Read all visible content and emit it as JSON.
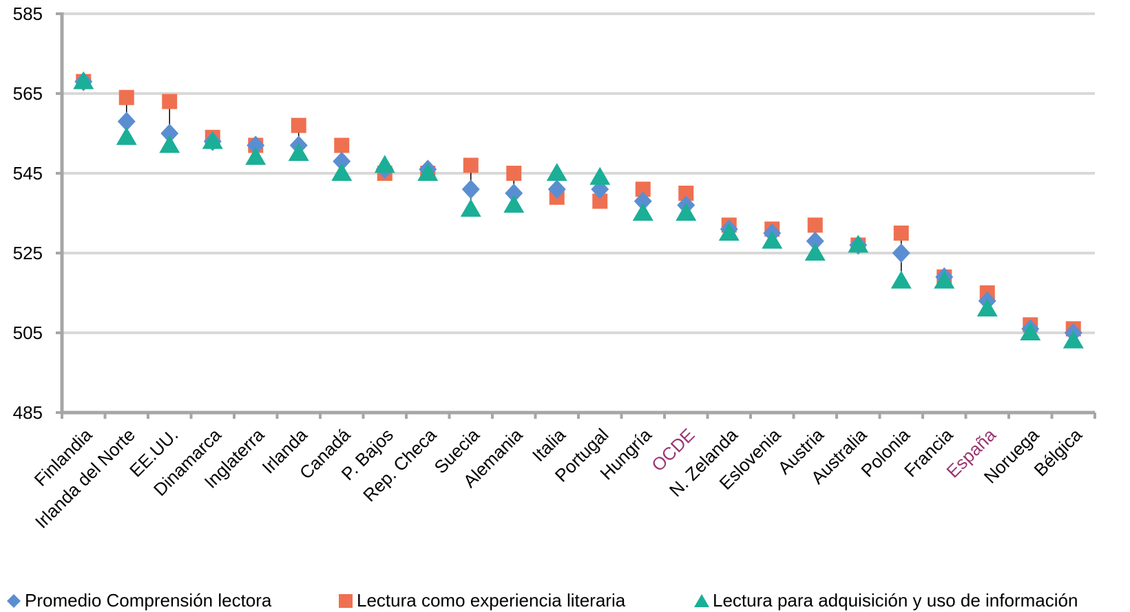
{
  "chart_data": {
    "type": "scatter",
    "title": "",
    "xlabel": "",
    "ylabel": "",
    "ylim": [
      485,
      585
    ],
    "yticks": [
      485,
      505,
      525,
      545,
      565,
      585
    ],
    "grid": true,
    "legend_position": "bottom",
    "categories": [
      "Finlandia",
      "Irlanda del Norte",
      "EE.UU.",
      "Dinamarca",
      "Inglaterra",
      "Irlanda",
      "Canadá",
      "P. Bajos",
      "Rep. Checa",
      "Suecia",
      "Alemania",
      "Italia",
      "Portugal",
      "Hungría",
      "OCDE",
      "N. Zelanda",
      "Eslovenia",
      "Austria",
      "Australia",
      "Polonia",
      "Francia",
      "España",
      "Noruega",
      "Bélgica"
    ],
    "highlighted_categories": [
      "OCDE",
      "España"
    ],
    "series": [
      {
        "name": "Promedio Comprensión lectora",
        "marker": "diamond",
        "color": "#5b8ed1",
        "values": [
          568,
          558,
          555,
          553,
          552,
          552,
          548,
          546,
          546,
          541,
          540,
          541,
          541,
          538,
          537,
          531,
          530,
          528,
          527,
          525,
          519,
          513,
          506,
          505
        ]
      },
      {
        "name": "Lectura como experiencia literaria",
        "marker": "square",
        "color": "#ef7050",
        "values": [
          568,
          564,
          563,
          554,
          552,
          557,
          552,
          545,
          545,
          547,
          545,
          539,
          538,
          541,
          540,
          532,
          531,
          532,
          527,
          530,
          519,
          515,
          507,
          506
        ]
      },
      {
        "name": "Lectura para adquisición y uso de información",
        "marker": "triangle",
        "color": "#1aaf96",
        "values": [
          568,
          554,
          552,
          553,
          549,
          550,
          545,
          547,
          545,
          536,
          537,
          545,
          544,
          535,
          535,
          530,
          528,
          525,
          527,
          518,
          518,
          511,
          505,
          503
        ]
      }
    ],
    "colors": {
      "axis": "#a6a6a6",
      "grid": "#d9d9d9",
      "highlight_label": "#9b3672",
      "connector": "#000000"
    }
  }
}
